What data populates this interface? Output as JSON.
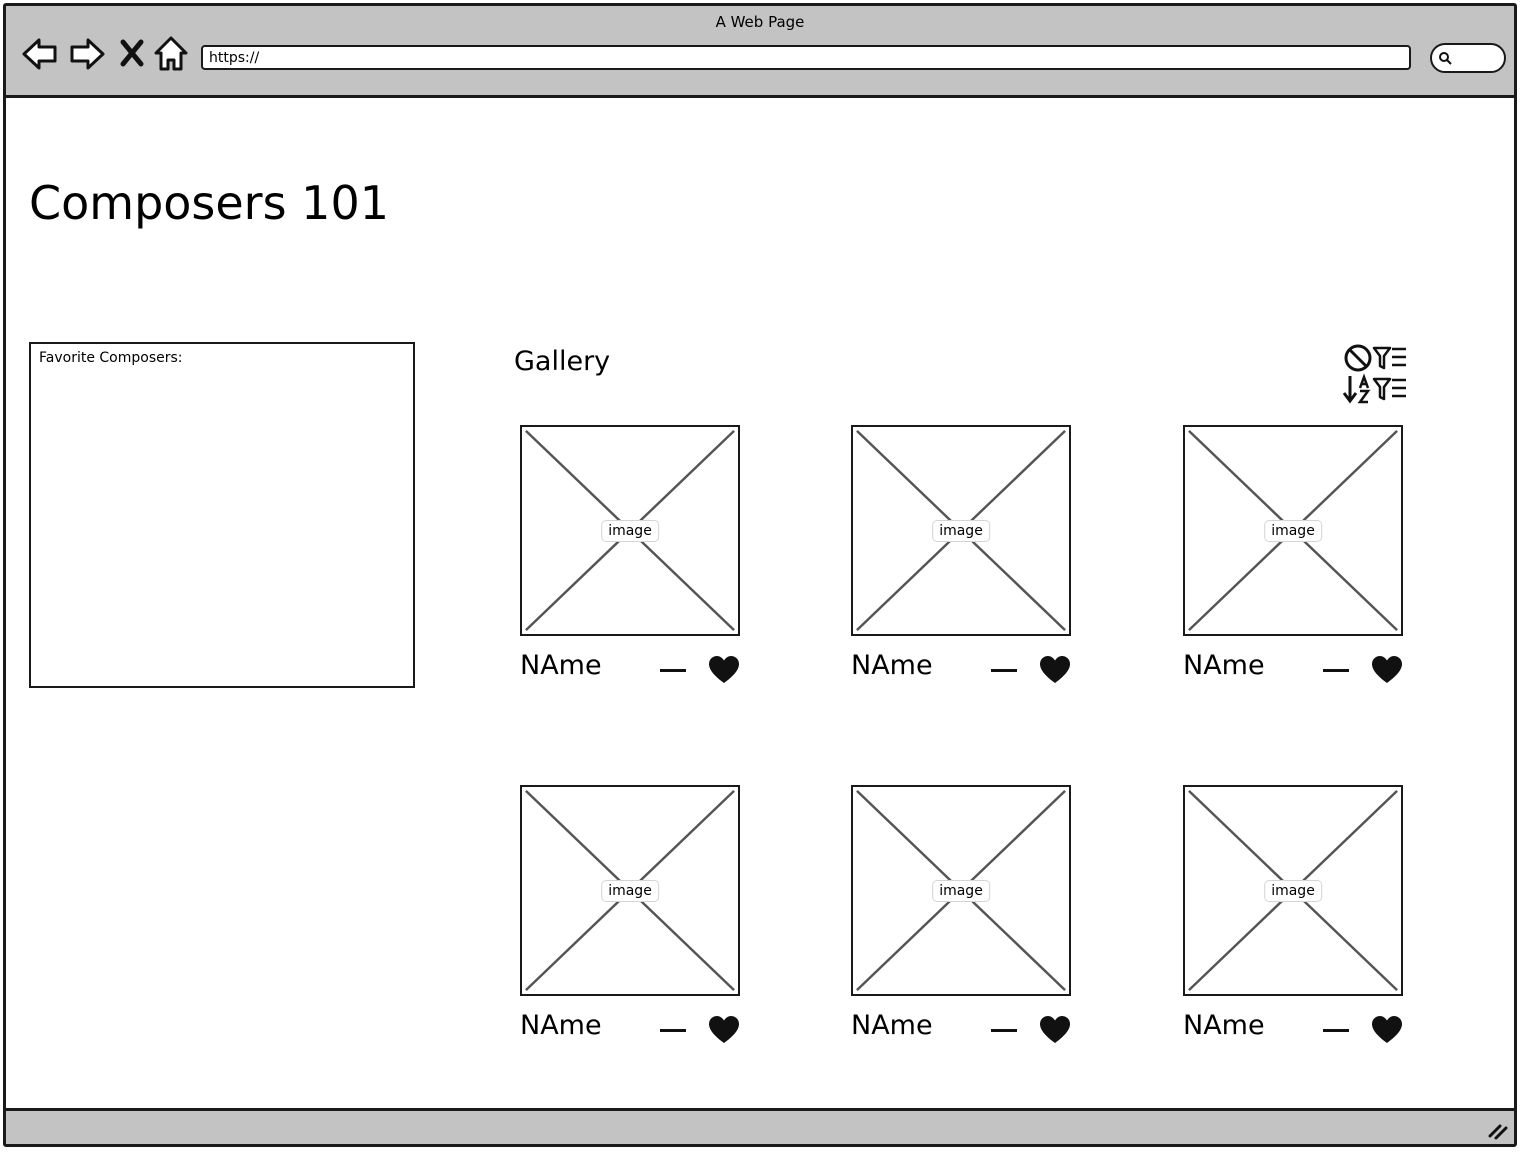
{
  "browser": {
    "window_title": "A Web Page",
    "url": "https://",
    "icons": [
      "back-arrow-icon",
      "forward-arrow-icon",
      "close-icon",
      "home-icon",
      "search-icon",
      "resize-grip-icon"
    ]
  },
  "page": {
    "title": "Composers 101",
    "favorites": {
      "label": "Favorite Composers:"
    },
    "gallery": {
      "title": "Gallery",
      "tool_icons": [
        "clear-filter-icon",
        "sort-filter-icon"
      ],
      "cards": [
        {
          "image_label": "image",
          "name": "NAme"
        },
        {
          "image_label": "image",
          "name": "NAme"
        },
        {
          "image_label": "image",
          "name": "NAme"
        },
        {
          "image_label": "image",
          "name": "NAme"
        },
        {
          "image_label": "image",
          "name": "NAme"
        },
        {
          "image_label": "image",
          "name": "NAme"
        }
      ]
    }
  },
  "colors": {
    "chrome": "#c3c3c3",
    "outline": "#1a1a1a",
    "background": "#ffffff"
  }
}
